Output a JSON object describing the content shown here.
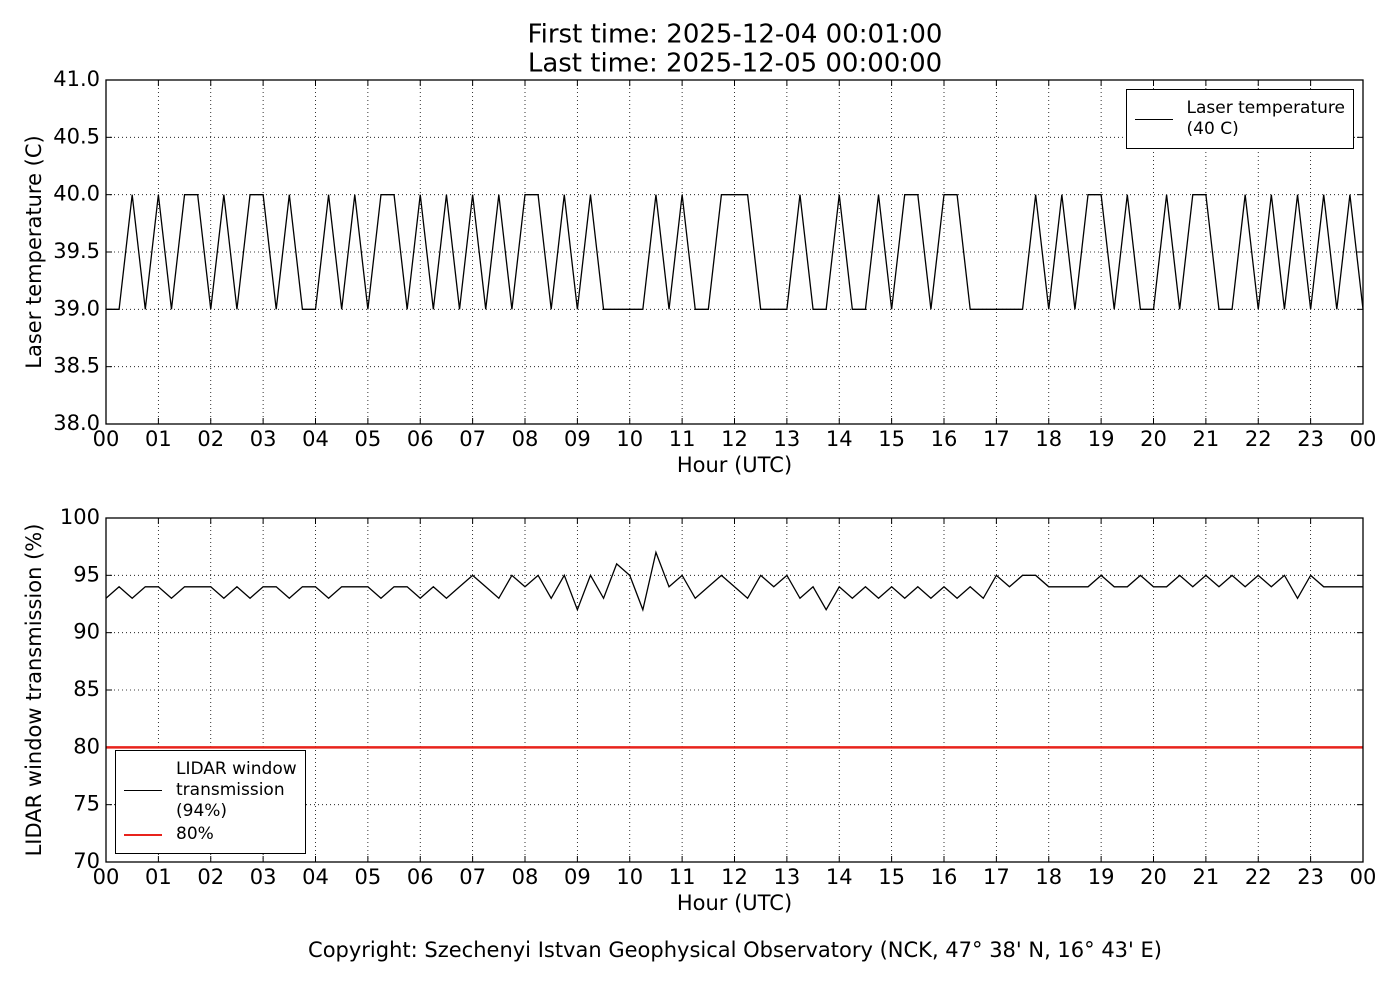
{
  "chart_data": [
    {
      "type": "line",
      "title": "First time: 2025-12-04 00:01:00",
      "subtitle": "Last time: 2025-12-05 00:00:00",
      "xlabel": "Hour (UTC)",
      "ylabel": "Laser temperature (C)",
      "x": [
        0,
        0.25,
        0.5,
        0.75,
        1,
        1.25,
        1.5,
        1.75,
        2,
        2.25,
        2.5,
        2.75,
        3,
        3.25,
        3.5,
        3.75,
        4,
        4.25,
        4.5,
        4.75,
        5,
        5.25,
        5.5,
        5.75,
        6,
        6.25,
        6.5,
        6.75,
        7,
        7.25,
        7.5,
        7.75,
        8,
        8.25,
        8.5,
        8.75,
        9,
        9.25,
        9.5,
        9.75,
        10,
        10.25,
        10.5,
        10.75,
        11,
        11.25,
        11.5,
        11.75,
        12,
        12.25,
        12.5,
        12.75,
        13,
        13.25,
        13.5,
        13.75,
        14,
        14.25,
        14.5,
        14.75,
        15,
        15.25,
        15.5,
        15.75,
        16,
        16.25,
        16.5,
        16.75,
        17,
        17.25,
        17.5,
        17.75,
        18,
        18.25,
        18.5,
        18.75,
        19,
        19.25,
        19.5,
        19.75,
        20,
        20.25,
        20.5,
        20.75,
        21,
        21.25,
        21.5,
        21.75,
        22,
        22.25,
        22.5,
        22.75,
        23,
        23.25,
        23.5,
        23.75,
        24
      ],
      "series": [
        {
          "name": "Laser temperature\n(40 C)",
          "color": "#000000",
          "values": [
            39,
            39,
            40,
            39,
            40,
            39,
            40,
            40,
            39,
            40,
            39,
            40,
            40,
            39,
            40,
            39,
            39,
            40,
            39,
            40,
            39,
            40,
            40,
            39,
            40,
            39,
            40,
            39,
            40,
            39,
            40,
            39,
            40,
            40,
            39,
            40,
            39,
            40,
            39,
            39,
            39,
            39,
            40,
            39,
            40,
            39,
            39,
            40,
            40,
            40,
            39,
            39,
            39,
            40,
            39,
            39,
            40,
            39,
            39,
            40,
            39,
            40,
            40,
            39,
            40,
            40,
            39,
            39,
            39,
            39,
            39,
            40,
            39,
            40,
            39,
            40,
            40,
            39,
            40,
            39,
            39,
            40,
            39,
            40,
            40,
            39,
            39,
            40,
            39,
            40,
            39,
            40,
            39,
            40,
            39,
            40,
            39
          ]
        }
      ],
      "xlim": [
        0,
        24
      ],
      "xticks": [
        {
          "value": 0,
          "label": "00"
        },
        {
          "value": 1,
          "label": "01"
        },
        {
          "value": 2,
          "label": "02"
        },
        {
          "value": 3,
          "label": "03"
        },
        {
          "value": 4,
          "label": "04"
        },
        {
          "value": 5,
          "label": "05"
        },
        {
          "value": 6,
          "label": "06"
        },
        {
          "value": 7,
          "label": "07"
        },
        {
          "value": 8,
          "label": "08"
        },
        {
          "value": 9,
          "label": "09"
        },
        {
          "value": 10,
          "label": "10"
        },
        {
          "value": 11,
          "label": "11"
        },
        {
          "value": 12,
          "label": "12"
        },
        {
          "value": 13,
          "label": "13"
        },
        {
          "value": 14,
          "label": "14"
        },
        {
          "value": 15,
          "label": "15"
        },
        {
          "value": 16,
          "label": "16"
        },
        {
          "value": 17,
          "label": "17"
        },
        {
          "value": 18,
          "label": "18"
        },
        {
          "value": 19,
          "label": "19"
        },
        {
          "value": 20,
          "label": "20"
        },
        {
          "value": 21,
          "label": "21"
        },
        {
          "value": 22,
          "label": "22"
        },
        {
          "value": 23,
          "label": "23"
        },
        {
          "value": 24,
          "label": "00"
        }
      ],
      "ylim": [
        38,
        41
      ],
      "yticks": [
        {
          "value": 38,
          "label": "38.0"
        },
        {
          "value": 38.5,
          "label": "38.5"
        },
        {
          "value": 39,
          "label": "39.0"
        },
        {
          "value": 39.5,
          "label": "39.5"
        },
        {
          "value": 40,
          "label": "40.0"
        },
        {
          "value": 40.5,
          "label": "40.5"
        },
        {
          "value": 41,
          "label": "41.0"
        }
      ],
      "grid": true,
      "legend": "upper right"
    },
    {
      "type": "line",
      "xlabel": "Hour (UTC)",
      "ylabel": "LIDAR window transmission (%)",
      "x": [
        0,
        0.25,
        0.5,
        0.75,
        1,
        1.25,
        1.5,
        1.75,
        2,
        2.25,
        2.5,
        2.75,
        3,
        3.25,
        3.5,
        3.75,
        4,
        4.25,
        4.5,
        4.75,
        5,
        5.25,
        5.5,
        5.75,
        6,
        6.25,
        6.5,
        6.75,
        7,
        7.25,
        7.5,
        7.75,
        8,
        8.25,
        8.5,
        8.75,
        9,
        9.25,
        9.5,
        9.75,
        10,
        10.25,
        10.5,
        10.75,
        11,
        11.25,
        11.5,
        11.75,
        12,
        12.25,
        12.5,
        12.75,
        13,
        13.25,
        13.5,
        13.75,
        14,
        14.25,
        14.5,
        14.75,
        15,
        15.25,
        15.5,
        15.75,
        16,
        16.25,
        16.5,
        16.75,
        17,
        17.25,
        17.5,
        17.75,
        18,
        18.25,
        18.5,
        18.75,
        19,
        19.25,
        19.5,
        19.75,
        20,
        20.25,
        20.5,
        20.75,
        21,
        21.25,
        21.5,
        21.75,
        22,
        22.25,
        22.5,
        22.75,
        23,
        23.25,
        23.5,
        23.75,
        24
      ],
      "series": [
        {
          "name": "LIDAR window\ntransmission\n(94%)",
          "color": "#000000",
          "values": [
            93,
            94,
            93,
            94,
            94,
            93,
            94,
            94,
            94,
            93,
            94,
            93,
            94,
            94,
            93,
            94,
            94,
            93,
            94,
            94,
            94,
            93,
            94,
            94,
            93,
            94,
            93,
            94,
            95,
            94,
            93,
            95,
            94,
            95,
            93,
            95,
            92,
            95,
            93,
            96,
            95,
            92,
            97,
            94,
            95,
            93,
            94,
            95,
            94,
            93,
            95,
            94,
            95,
            93,
            94,
            92,
            94,
            93,
            94,
            93,
            94,
            93,
            94,
            93,
            94,
            93,
            94,
            93,
            95,
            94,
            95,
            95,
            94,
            94,
            94,
            94,
            95,
            94,
            94,
            95,
            94,
            94,
            95,
            94,
            95,
            94,
            95,
            94,
            95,
            94,
            95,
            93,
            95,
            94,
            94,
            94,
            94
          ]
        },
        {
          "name": "80%",
          "color": "#e8231c",
          "x": [
            0,
            24
          ],
          "values": [
            80,
            80
          ]
        }
      ],
      "xlim": [
        0,
        24
      ],
      "xticks": [
        {
          "value": 0,
          "label": "00"
        },
        {
          "value": 1,
          "label": "01"
        },
        {
          "value": 2,
          "label": "02"
        },
        {
          "value": 3,
          "label": "03"
        },
        {
          "value": 4,
          "label": "04"
        },
        {
          "value": 5,
          "label": "05"
        },
        {
          "value": 6,
          "label": "06"
        },
        {
          "value": 7,
          "label": "07"
        },
        {
          "value": 8,
          "label": "08"
        },
        {
          "value": 9,
          "label": "09"
        },
        {
          "value": 10,
          "label": "10"
        },
        {
          "value": 11,
          "label": "11"
        },
        {
          "value": 12,
          "label": "12"
        },
        {
          "value": 13,
          "label": "13"
        },
        {
          "value": 14,
          "label": "14"
        },
        {
          "value": 15,
          "label": "15"
        },
        {
          "value": 16,
          "label": "16"
        },
        {
          "value": 17,
          "label": "17"
        },
        {
          "value": 18,
          "label": "18"
        },
        {
          "value": 19,
          "label": "19"
        },
        {
          "value": 20,
          "label": "20"
        },
        {
          "value": 21,
          "label": "21"
        },
        {
          "value": 22,
          "label": "22"
        },
        {
          "value": 23,
          "label": "23"
        },
        {
          "value": 24,
          "label": "00"
        }
      ],
      "ylim": [
        70,
        100
      ],
      "yticks": [
        70,
        75,
        80,
        85,
        90,
        95,
        100
      ],
      "grid": true,
      "legend": "lower left"
    }
  ],
  "footer": "Copyright: Szechenyi Istvan Geophysical Observatory (NCK, 47° 38' N, 16° 43' E)"
}
